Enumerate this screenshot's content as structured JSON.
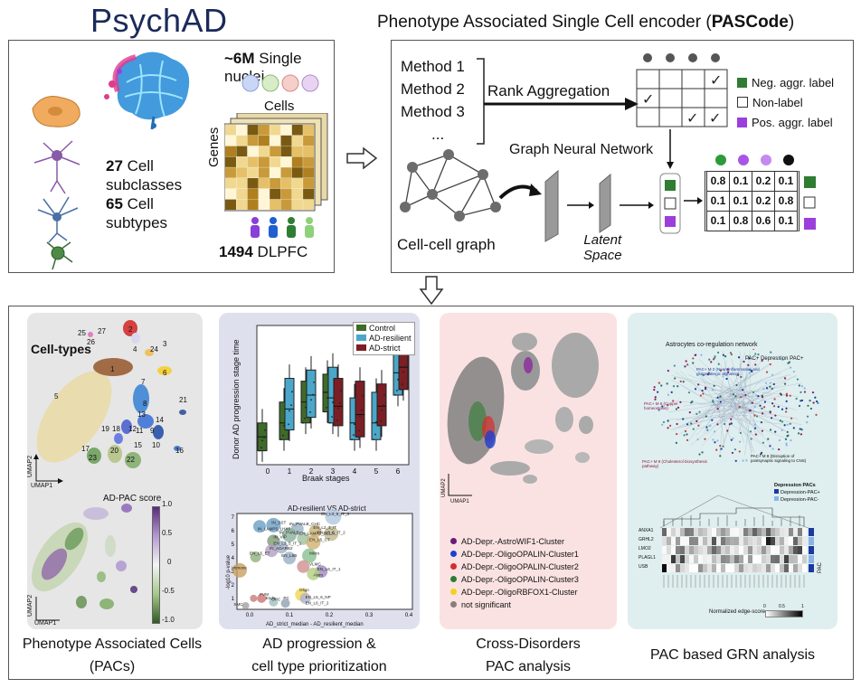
{
  "top_left": {
    "logo": "PsychAD",
    "nuclei_count": "~6M",
    "nuclei_label": " Single nuclei",
    "cells_label": "Cells",
    "genes_label": "Genes",
    "subclass_count": "27",
    "subclass_label": " Cell",
    "subclass_label2": "subclasses",
    "subtype_count": "65",
    "subtype_label": " Cell",
    "subtype_label2": "subtypes",
    "donor_count": "1494",
    "donor_label": " DLPFC"
  },
  "top_right": {
    "title_plain": "Phenotype Associated Single Cell encoder (",
    "title_bold": "PASCode",
    "title_end": ")",
    "methods": [
      "Method 1",
      "Method 2",
      "Method 3",
      "..."
    ],
    "rank_aggregation": "Rank Aggregation",
    "gnn_label": "Graph Neural Network",
    "cell_graph_label": "Cell-cell graph",
    "latent_label1": "Latent",
    "latent_label2": "Space",
    "legend": [
      "Neg. aggr. label",
      "Non-label",
      "Pos. aggr. label"
    ],
    "prob_table": [
      [
        "0.8",
        "0.1",
        "0.2",
        "0.1"
      ],
      [
        "0.1",
        "0.1",
        "0.2",
        "0.8"
      ],
      [
        "0.1",
        "0.8",
        "0.6",
        "0.1"
      ]
    ]
  },
  "panels": {
    "umap": {
      "cell_types": "Cell-types",
      "cluster_numbers": [
        "1",
        "2",
        "3",
        "4",
        "5",
        "6",
        "7",
        "8",
        "9",
        "10",
        "11",
        "12",
        "13",
        "14",
        "15",
        "16",
        "17",
        "18",
        "19",
        "20",
        "21",
        "22",
        "23",
        "24",
        "25",
        "26",
        "27"
      ],
      "umap1": "UMAP1",
      "umap2": "UMAP2",
      "score_label": "AD-PAC score",
      "colorbar_ticks": [
        "1.0",
        "0.5",
        "0",
        "-0.5",
        "-1.0"
      ],
      "caption1": "Phenotype Associated Cells",
      "caption2": "(PACs)"
    },
    "progression": {
      "legend": [
        "Control",
        "AD-resilient",
        "AD-strict"
      ],
      "ylabel": "Donor AD progression stage time",
      "xlabel": "Braak stages",
      "xticks": [
        "0",
        "1",
        "2",
        "3",
        "4",
        "5",
        "6"
      ],
      "scatter_title": "AD-resilient VS AD-strict",
      "scatter_ylabel": "-log10 p-value",
      "scatter_xlabel": "AD_strict_median - AD_resilient_median",
      "scatter_xticks": [
        "0.0",
        "0.1",
        "0.2",
        "0.3",
        "0.4"
      ],
      "scatter_yticks": [
        "7",
        "6",
        "5",
        "4",
        "3",
        "2",
        "1"
      ],
      "scatter_labels": [
        "IN_LAMP5_LHX6",
        "IN_SST",
        "IN_PVALB_CHC",
        "EN_L3_5_IT_3",
        "EN_L2_3_IT",
        "EN_L3_5_IT_2",
        "IN_PVALB",
        "EN_LAMP5_RELN",
        "IN_VIP",
        "EN_L6_CT",
        "EN_L3_5_IT_1",
        "IN_ADARB2",
        "EN_L5_ET",
        "EN_L6B",
        "Micro",
        "Immune",
        "VLMC",
        "EN_L6_IT_1",
        "Astro",
        "Oligo",
        "PVM",
        "Endo",
        "OPC",
        "PC",
        "EN_L5_6_NP",
        "SMC",
        "EN_L6_IT_2"
      ],
      "caption1": "AD progression &",
      "caption2": "cell type prioritization"
    },
    "cross": {
      "umap1": "UMAP1",
      "umap2": "UMAP2",
      "legend": [
        "AD-Depr.-AstroWIF1-Cluster",
        "AD-Depr.-OligoOPALIN-Cluster1",
        "AD-Depr.-OligoOPALIN-Cluster2",
        "AD-Depr.-OligoOPALIN-Cluster3",
        "AD-Depr.-OligoRBFOX1-Cluster",
        "not significant"
      ],
      "legend_colors": [
        "#6a1b7a",
        "#1f3fcf",
        "#d92b2b",
        "#2e7d32",
        "#f2d21a",
        "#8a7d7a"
      ],
      "caption1": "Cross-Disorders",
      "caption2": "PAC analysis"
    },
    "grn": {
      "title": "Astrocytes co-regulation network",
      "pac_title": "PAC+ Depression PAC+",
      "module2": "PAC+ M 2 (Neuroinflammation and glutamatergic signaling)",
      "module6": "PAC+ M 6 (Copper homeostasis)",
      "module8": "PAC+ M 8 (Disruption of postsynaptic signaling to CNS)",
      "module9": "PAC+ M 9 (Cholesterol biosynthesis pathway)",
      "legend_title": "Depression PACs",
      "legend": [
        "Depression-PAC+",
        "Depression-PAC-"
      ],
      "genes": [
        "ANXA1",
        "GRHL2",
        "LMO2",
        "PLAGL1",
        "USB"
      ],
      "pac_label": "PAC",
      "edge_label": "Normalized edge-score",
      "edge_ticks": [
        "0",
        "0.5",
        "1"
      ],
      "caption": "PAC based GRN analysis"
    }
  },
  "colors": {
    "control": "#3f6b2a",
    "resilient": "#4aa7c9",
    "strict": "#7b1f24",
    "neg": "#2e7d32",
    "pos": "#9b3fdc",
    "logo": "#1a2a5a"
  }
}
